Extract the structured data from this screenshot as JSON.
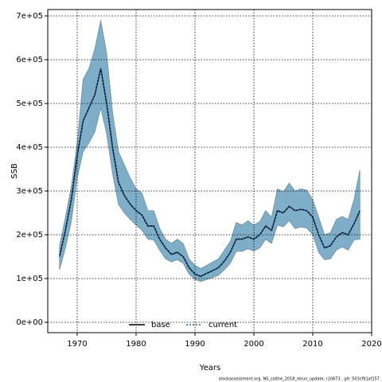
{
  "chart_data": {
    "type": "line",
    "xlabel": "Years",
    "ylabel": "SSB",
    "footnote": "stockassessment.org, NS_saithe_2018_rerun_update, r10673 , git: 503cf91af157",
    "x": [
      1967,
      1968,
      1969,
      1970,
      1971,
      1972,
      1973,
      1974,
      1975,
      1976,
      1977,
      1978,
      1979,
      1980,
      1981,
      1982,
      1983,
      1984,
      1985,
      1986,
      1987,
      1988,
      1989,
      1990,
      1991,
      1992,
      1993,
      1994,
      1995,
      1996,
      1997,
      1998,
      1999,
      2000,
      2001,
      2002,
      2003,
      2004,
      2005,
      2006,
      2007,
      2008,
      2009,
      2010,
      2011,
      2012,
      2013,
      2014,
      2015,
      2016,
      2017,
      2018
    ],
    "band": {
      "color": "#7fafc8",
      "upper": [
        175000,
        240000,
        310000,
        410000,
        555000,
        580000,
        625000,
        690000,
        615000,
        480000,
        390000,
        360000,
        330000,
        305000,
        295000,
        255000,
        255000,
        215000,
        190000,
        180000,
        190000,
        180000,
        145000,
        130000,
        123000,
        130000,
        138000,
        145000,
        165000,
        185000,
        228000,
        222000,
        232000,
        222000,
        230000,
        255000,
        240000,
        305000,
        298000,
        318000,
        300000,
        305000,
        302000,
        280000,
        240000,
        200000,
        205000,
        235000,
        242000,
        235000,
        280000,
        348000
      ],
      "lower": [
        120000,
        170000,
        230000,
        330000,
        390000,
        410000,
        435000,
        490000,
        430000,
        340000,
        270000,
        250000,
        235000,
        222000,
        210000,
        190000,
        188000,
        165000,
        145000,
        138000,
        143000,
        135000,
        110000,
        98000,
        93000,
        98000,
        102000,
        108000,
        120000,
        135000,
        162000,
        162000,
        168000,
        163000,
        170000,
        190000,
        180000,
        222000,
        218000,
        232000,
        214000,
        218000,
        215000,
        200000,
        160000,
        143000,
        145000,
        165000,
        172000,
        165000,
        188000,
        190000
      ]
    },
    "series": [
      {
        "name": "base",
        "color": "#000000",
        "dash": "solid",
        "values": [
          150000,
          210000,
          280000,
          380000,
          460000,
          490000,
          520000,
          580000,
          500000,
          400000,
          320000,
          290000,
          270000,
          255000,
          245000,
          220000,
          220000,
          190000,
          170000,
          155000,
          160000,
          150000,
          125000,
          110000,
          105000,
          112000,
          118000,
          125000,
          140000,
          160000,
          190000,
          190000,
          195000,
          190000,
          200000,
          220000,
          210000,
          255000,
          250000,
          265000,
          255000,
          258000,
          255000,
          240000,
          200000,
          170000,
          175000,
          195000,
          205000,
          200000,
          225000,
          255000
        ]
      },
      {
        "name": "current",
        "color": "#1f5fa0",
        "dash": "dotted",
        "values": [
          150000,
          210000,
          280000,
          380000,
          460000,
          490000,
          520000,
          580000,
          500000,
          400000,
          320000,
          290000,
          270000,
          255000,
          245000,
          220000,
          220000,
          190000,
          170000,
          155000,
          160000,
          150000,
          125000,
          110000,
          105000,
          112000,
          118000,
          125000,
          140000,
          160000,
          190000,
          190000,
          195000,
          190000,
          200000,
          220000,
          210000,
          255000,
          250000,
          265000,
          255000,
          258000,
          255000,
          240000,
          200000,
          170000,
          175000,
          195000,
          205000,
          200000,
          225000,
          255000
        ]
      }
    ],
    "xlim": [
      1965,
      2020
    ],
    "ylim": [
      -23600,
      714500
    ],
    "xticks": [
      1970,
      1980,
      1990,
      2000,
      2010,
      2020
    ],
    "yticks": [
      {
        "value": 0,
        "label": "0e+00"
      },
      {
        "value": 100000,
        "label": "1e+05"
      },
      {
        "value": 200000,
        "label": "2e+05"
      },
      {
        "value": 300000,
        "label": "3e+05"
      },
      {
        "value": 400000,
        "label": "4e+05"
      },
      {
        "value": 500000,
        "label": "5e+05"
      },
      {
        "value": 600000,
        "label": "6e+05"
      },
      {
        "value": 700000,
        "label": "7e+05"
      }
    ],
    "grid": true,
    "legend": "bottom"
  }
}
